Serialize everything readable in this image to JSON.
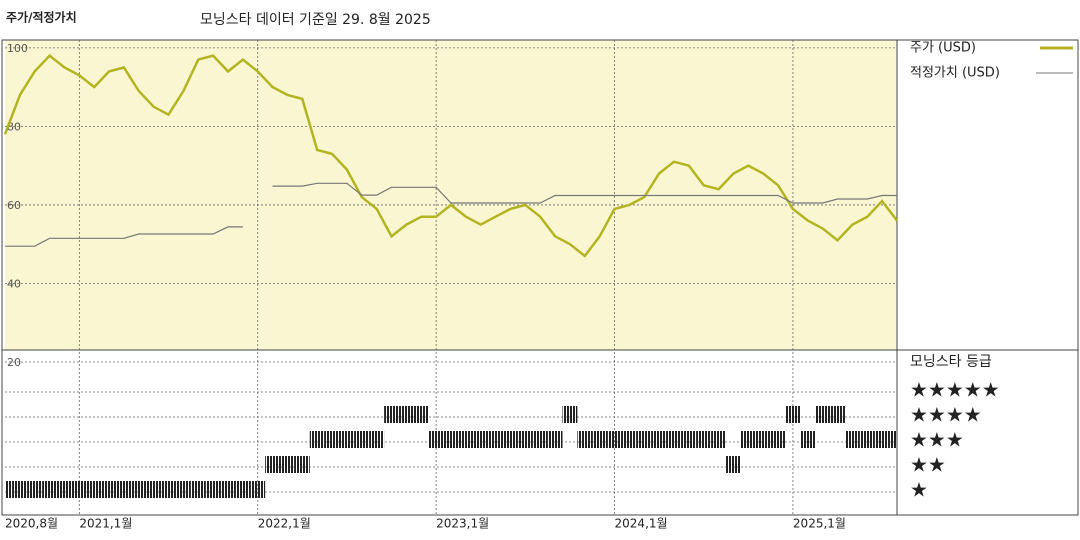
{
  "chart_data": [
    {
      "type": "line",
      "title": "주가/적정가치",
      "subtitle": "모닝스타 데이터 기준일 29. 8월 2025",
      "x": [
        "2020-08",
        "2020-09",
        "2020-10",
        "2020-11",
        "2020-12",
        "2021-01",
        "2021-02",
        "2021-03",
        "2021-04",
        "2021-05",
        "2021-06",
        "2021-07",
        "2021-08",
        "2021-09",
        "2021-10",
        "2021-11",
        "2021-12",
        "2022-01",
        "2022-02",
        "2022-03",
        "2022-04",
        "2022-05",
        "2022-06",
        "2022-07",
        "2022-08",
        "2022-09",
        "2022-10",
        "2022-11",
        "2022-12",
        "2023-01",
        "2023-02",
        "2023-03",
        "2023-04",
        "2023-05",
        "2023-06",
        "2023-07",
        "2023-08",
        "2023-09",
        "2023-10",
        "2023-11",
        "2023-12",
        "2024-01",
        "2024-02",
        "2024-03",
        "2024-04",
        "2024-05",
        "2024-06",
        "2024-07",
        "2024-08",
        "2024-09",
        "2024-10",
        "2024-11",
        "2024-12",
        "2025-01",
        "2025-02",
        "2025-03",
        "2025-04",
        "2025-05",
        "2025-06",
        "2025-07",
        "2025-08"
      ],
      "series": [
        {
          "name": "주가 (USD)",
          "color": "#b3b420",
          "values": [
            78,
            88,
            94,
            98,
            95,
            93,
            90,
            94,
            95,
            89,
            85,
            83,
            89,
            97,
            98,
            94,
            97,
            94,
            90,
            88,
            87,
            74,
            73,
            69,
            62,
            59,
            52,
            55,
            57,
            57,
            60,
            57,
            55,
            57,
            59,
            60,
            57,
            52,
            50,
            47,
            52,
            59,
            60,
            62,
            68,
            71,
            70,
            65,
            64,
            68,
            70,
            68,
            65,
            59,
            56,
            54,
            51,
            55,
            57,
            61,
            56
          ]
        },
        {
          "name": "적정가치 (USD)",
          "color": "#777777",
          "values": [
            49.5,
            49.5,
            49.5,
            51.5,
            51.5,
            51.5,
            51.5,
            51.5,
            51.5,
            52.6,
            52.6,
            52.6,
            52.6,
            52.6,
            52.6,
            54.4,
            54.4,
            null,
            64.8,
            64.8,
            64.8,
            65.5,
            65.5,
            65.5,
            62.5,
            62.5,
            64.5,
            64.5,
            64.5,
            64.5,
            60.5,
            60.5,
            60.5,
            60.5,
            60.5,
            60.5,
            60.5,
            62.4,
            62.4,
            62.4,
            62.4,
            62.4,
            62.4,
            62.4,
            62.4,
            62.4,
            62.4,
            62.4,
            62.4,
            62.4,
            62.4,
            62.4,
            62.4,
            60.5,
            60.5,
            60.5,
            61.5,
            61.5,
            61.5,
            62.4,
            62.4
          ]
        }
      ],
      "ylim": [
        20,
        102
      ],
      "yticks": [
        20,
        40,
        60,
        80,
        100
      ],
      "xticks": [
        {
          "value": "2020-08",
          "label": "2020,8월"
        },
        {
          "value": "2021-01",
          "label": "2021,1월"
        },
        {
          "value": "2022-01",
          "label": "2022,1월"
        },
        {
          "value": "2023-01",
          "label": "2023,1월"
        },
        {
          "value": "2024-01",
          "label": "2024,1월"
        },
        {
          "value": "2025-01",
          "label": "2025,1월"
        }
      ],
      "grid": true,
      "background": "#faf6d2"
    },
    {
      "type": "rating",
      "title": "모닝스타 등급",
      "color": "#222222",
      "values": [
        1,
        1,
        1,
        1,
        1,
        1,
        1,
        1,
        1,
        1,
        1,
        1,
        1,
        1,
        1,
        1,
        1,
        1,
        2,
        2,
        2,
        3,
        3,
        3,
        3,
        3,
        4,
        4,
        4,
        3,
        3,
        3,
        3,
        3,
        3,
        3,
        3,
        3,
        4,
        3,
        3,
        3,
        3,
        3,
        3,
        3,
        3,
        3,
        3,
        2,
        3,
        3,
        3,
        4,
        3,
        4,
        4,
        3,
        3,
        3,
        3
      ],
      "ylim": [
        0,
        6
      ],
      "yticks": [
        {
          "value": 5,
          "label": "★★★★★"
        },
        {
          "value": 4,
          "label": "★★★★"
        },
        {
          "value": 3,
          "label": "★★★"
        },
        {
          "value": 2,
          "label": "★★"
        },
        {
          "value": 1,
          "label": "★"
        }
      ]
    }
  ]
}
